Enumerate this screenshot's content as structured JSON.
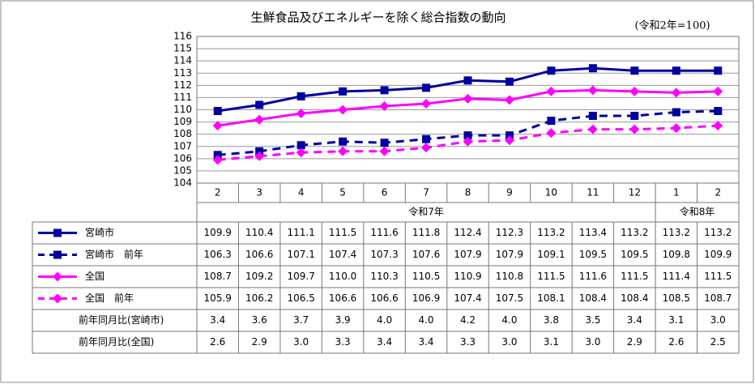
{
  "chart_data": {
    "type": "line",
    "title": "生鮮食品及びエネルギーを除く総合指数の動向",
    "annotation": "(令和2年=100)",
    "categories": [
      "2",
      "3",
      "4",
      "5",
      "6",
      "7",
      "8",
      "9",
      "10",
      "11",
      "12",
      "1",
      "2"
    ],
    "periods": [
      {
        "label": "令和7年",
        "count": 11
      },
      {
        "label": "令和8年",
        "count": 2
      }
    ],
    "ylim": [
      104,
      116
    ],
    "yticks": [
      104,
      105,
      106,
      107,
      108,
      109,
      110,
      111,
      112,
      113,
      114,
      115,
      116
    ],
    "grid": true,
    "series": [
      {
        "name": "宮崎市",
        "color": "#0000a0",
        "dashed": false,
        "marker": "square",
        "values": [
          109.9,
          110.4,
          111.1,
          111.5,
          111.6,
          111.8,
          112.4,
          112.3,
          113.2,
          113.4,
          113.2,
          113.2,
          113.2
        ],
        "value_labels": [
          "109.9",
          "110.4",
          "111.1",
          "111.5",
          "111.6",
          "111.8",
          "112.4",
          "112.3",
          "113.2",
          "113.4",
          "113.2",
          "113.2",
          "113.2"
        ]
      },
      {
        "name": "宮崎市　前年",
        "color": "#0000a0",
        "dashed": true,
        "marker": "square",
        "values": [
          106.3,
          106.6,
          107.1,
          107.4,
          107.3,
          107.6,
          107.9,
          107.9,
          109.1,
          109.5,
          109.5,
          109.8,
          109.9
        ],
        "value_labels": [
          "106.3",
          "106.6",
          "107.1",
          "107.4",
          "107.3",
          "107.6",
          "107.9",
          "107.9",
          "109.1",
          "109.5",
          "109.5",
          "109.8",
          "109.9"
        ]
      },
      {
        "name": "全国",
        "color": "#ff00ff",
        "dashed": false,
        "marker": "diamond",
        "values": [
          108.7,
          109.2,
          109.7,
          110.0,
          110.3,
          110.5,
          110.9,
          110.8,
          111.5,
          111.6,
          111.5,
          111.4,
          111.5
        ],
        "value_labels": [
          "108.7",
          "109.2",
          "109.7",
          "110.0",
          "110.3",
          "110.5",
          "110.9",
          "110.8",
          "111.5",
          "111.6",
          "111.5",
          "111.4",
          "111.5"
        ]
      },
      {
        "name": "全国　前年",
        "color": "#ff00ff",
        "dashed": true,
        "marker": "diamond",
        "values": [
          105.9,
          106.2,
          106.5,
          106.6,
          106.6,
          106.9,
          107.4,
          107.5,
          108.1,
          108.4,
          108.4,
          108.5,
          108.7
        ],
        "value_labels": [
          "105.9",
          "106.2",
          "106.5",
          "106.6",
          "106.6",
          "106.9",
          "107.4",
          "107.5",
          "108.1",
          "108.4",
          "108.4",
          "108.5",
          "108.7"
        ]
      }
    ],
    "table_rows": [
      {
        "name": "前年同月比(宮崎市)",
        "cells": [
          "3.4",
          "3.6",
          "3.7",
          "3.9",
          "4.0",
          "4.0",
          "4.2",
          "4.0",
          "3.8",
          "3.5",
          "3.4",
          "3.1",
          "3.0"
        ]
      },
      {
        "name": "前年同月比(全国)",
        "cells": [
          "2.6",
          "2.9",
          "3.0",
          "3.3",
          "3.4",
          "3.4",
          "3.3",
          "3.0",
          "3.1",
          "3.0",
          "2.9",
          "2.6",
          "2.5"
        ]
      }
    ]
  }
}
